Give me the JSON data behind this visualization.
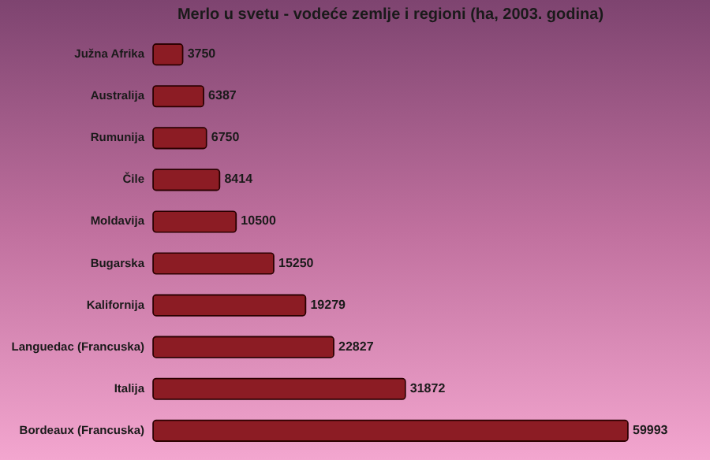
{
  "chart_data": {
    "type": "bar",
    "orientation": "horizontal",
    "title": "Merlo u svetu - vodeće zemlje i regioni (ha, 2003. godina)",
    "categories": [
      "Južna Afrika",
      "Australija",
      "Rumunija",
      "Čile",
      "Moldavija",
      "Bugarska",
      "Kalifornija",
      "Languedac (Francuska)",
      "Italija",
      "Bordeaux (Francuska)"
    ],
    "values": [
      3750,
      6387,
      6750,
      8414,
      10500,
      15250,
      19279,
      22827,
      31872,
      59993
    ],
    "color": "#8c1c24",
    "data_labels": true
  }
}
